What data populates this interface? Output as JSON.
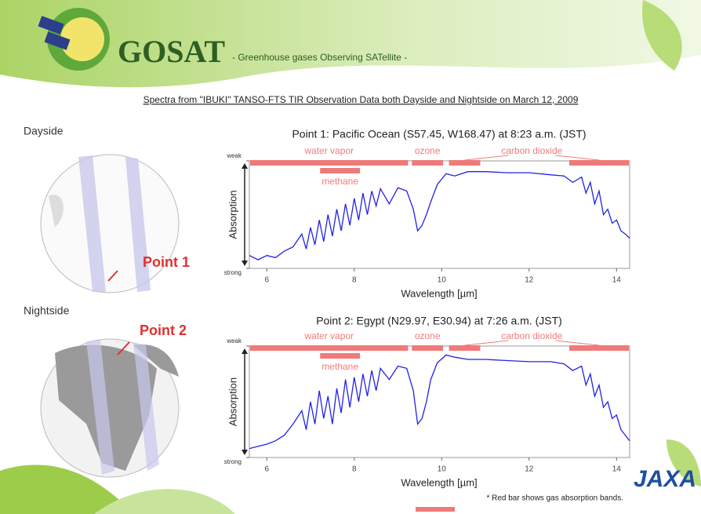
{
  "header": {
    "title": "GOSAT",
    "subtitle": "- Greenhouse gases Observing SATellite -"
  },
  "caption": "Spectra from \"IBUKI\" TANSO-FTS TIR Observation Data both Dayside and Nightside  on March 12, 2009",
  "panels": [
    {
      "label": "Dayside",
      "point": "Point 1"
    },
    {
      "label": "Nightside",
      "point": "Point 2"
    }
  ],
  "chart_data": [
    {
      "type": "line",
      "title": "Point 1: Pacific Ocean (S57.45, W168.47) at 8:23 a.m. (JST)",
      "x_label": "Wavelength [µm]",
      "y_label": "Absorption",
      "x": [
        5.6,
        5.8,
        6.0,
        6.2,
        6.4,
        6.6,
        6.8,
        6.9,
        7.0,
        7.1,
        7.2,
        7.3,
        7.4,
        7.5,
        7.6,
        7.7,
        7.8,
        7.9,
        8.0,
        8.1,
        8.2,
        8.3,
        8.4,
        8.5,
        8.6,
        8.8,
        9.0,
        9.2,
        9.35,
        9.45,
        9.55,
        9.65,
        9.75,
        9.9,
        10.1,
        10.3,
        10.6,
        11.0,
        11.5,
        12.0,
        12.5,
        12.8,
        13.0,
        13.2,
        13.3,
        13.4,
        13.5,
        13.6,
        13.7,
        13.8,
        13.9,
        14.0,
        14.1,
        14.2,
        14.3
      ],
      "series": [
        {
          "color": "#2222e6",
          "values": [
            0.12,
            0.08,
            0.12,
            0.1,
            0.16,
            0.2,
            0.32,
            0.18,
            0.38,
            0.22,
            0.45,
            0.25,
            0.5,
            0.3,
            0.55,
            0.35,
            0.6,
            0.4,
            0.65,
            0.45,
            0.7,
            0.5,
            0.72,
            0.58,
            0.74,
            0.6,
            0.75,
            0.72,
            0.55,
            0.35,
            0.4,
            0.5,
            0.62,
            0.78,
            0.88,
            0.86,
            0.9,
            0.9,
            0.89,
            0.89,
            0.87,
            0.86,
            0.8,
            0.85,
            0.7,
            0.8,
            0.6,
            0.72,
            0.5,
            0.55,
            0.42,
            0.45,
            0.35,
            0.32,
            0.28
          ]
        }
      ],
      "xlim": [
        5.6,
        14.3
      ],
      "xticks": [
        6,
        8,
        10,
        12,
        14
      ],
      "ylim": [
        0,
        1
      ],
      "yticks": [
        {
          "value": 0,
          "label": "strong"
        },
        {
          "value": 1,
          "label": "weak"
        }
      ],
      "band_color": "#f07a7a",
      "bands": [
        {
          "name": "water vapor",
          "row": 0,
          "ranges": [
            [
              5.6,
              9.25
            ]
          ]
        },
        {
          "name": "ozone",
          "row": 0,
          "ranges": [
            [
              9.3,
              10.05
            ]
          ]
        },
        {
          "name": "carbon dioxide",
          "row": 0,
          "ranges": [
            [
              10.15,
              10.9
            ],
            [
              12.9,
              14.3
            ]
          ]
        },
        {
          "name": "methane",
          "row": 1,
          "ranges": [
            [
              7.2,
              8.15
            ]
          ]
        }
      ]
    },
    {
      "type": "line",
      "title": "Point 2: Egypt (N29.97, E30.94) at 7:26 a.m. (JST)",
      "x_label": "Wavelength [µm]",
      "y_label": "Absorption",
      "x": [
        5.6,
        5.8,
        6.0,
        6.2,
        6.4,
        6.6,
        6.8,
        6.9,
        7.0,
        7.1,
        7.2,
        7.3,
        7.4,
        7.5,
        7.6,
        7.7,
        7.8,
        7.9,
        8.0,
        8.1,
        8.2,
        8.3,
        8.4,
        8.5,
        8.6,
        8.8,
        9.0,
        9.2,
        9.35,
        9.45,
        9.55,
        9.65,
        9.75,
        9.9,
        10.1,
        10.3,
        10.6,
        11.0,
        11.5,
        12.0,
        12.5,
        12.8,
        13.0,
        13.2,
        13.3,
        13.4,
        13.5,
        13.6,
        13.7,
        13.8,
        13.9,
        14.0,
        14.1,
        14.2,
        14.3
      ],
      "series": [
        {
          "color": "#2222e6",
          "values": [
            0.08,
            0.1,
            0.12,
            0.15,
            0.2,
            0.3,
            0.42,
            0.25,
            0.5,
            0.3,
            0.6,
            0.35,
            0.55,
            0.3,
            0.62,
            0.4,
            0.7,
            0.45,
            0.72,
            0.5,
            0.75,
            0.55,
            0.78,
            0.6,
            0.8,
            0.7,
            0.82,
            0.8,
            0.6,
            0.3,
            0.35,
            0.5,
            0.7,
            0.85,
            0.92,
            0.9,
            0.88,
            0.88,
            0.87,
            0.86,
            0.86,
            0.84,
            0.78,
            0.82,
            0.65,
            0.75,
            0.55,
            0.65,
            0.45,
            0.5,
            0.35,
            0.38,
            0.25,
            0.2,
            0.15
          ]
        }
      ],
      "xlim": [
        5.6,
        14.3
      ],
      "xticks": [
        6,
        8,
        10,
        12,
        14
      ],
      "ylim": [
        0,
        1
      ],
      "yticks": [
        {
          "value": 0,
          "label": "strong"
        },
        {
          "value": 1,
          "label": "weak"
        }
      ],
      "band_color": "#f07a7a",
      "bands": [
        {
          "name": "water vapor",
          "row": 0,
          "ranges": [
            [
              5.6,
              9.25
            ]
          ]
        },
        {
          "name": "ozone",
          "row": 0,
          "ranges": [
            [
              9.3,
              10.05
            ]
          ]
        },
        {
          "name": "carbon dioxide",
          "row": 0,
          "ranges": [
            [
              10.15,
              10.9
            ],
            [
              12.9,
              14.3
            ]
          ]
        },
        {
          "name": "methane",
          "row": 1,
          "ranges": [
            [
              7.2,
              8.15
            ]
          ]
        }
      ]
    }
  ],
  "footnote": "* Red bar shows gas absorption bands.",
  "logo": "JAXA"
}
